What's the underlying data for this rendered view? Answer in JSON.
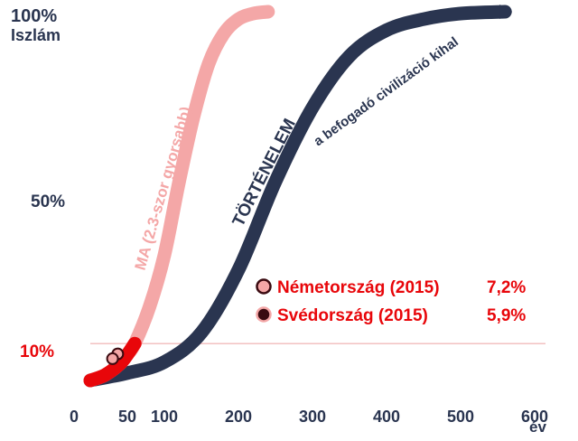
{
  "chart_data": {
    "type": "line",
    "x_unit": "év",
    "x_ticks": [
      "0",
      "50",
      "100",
      "200",
      "300",
      "400",
      "500",
      "600"
    ],
    "x_tick_values": [
      0,
      50,
      100,
      200,
      300,
      400,
      500,
      600
    ],
    "y_ticks": [
      {
        "label": "100%",
        "value": 100
      },
      {
        "label": "50%",
        "value": 50
      },
      {
        "label": "10%",
        "value": 10
      }
    ],
    "y_top_label": "Iszlám",
    "xlim": [
      0,
      600
    ],
    "ylim": [
      0,
      100
    ],
    "reference_line_y": 10,
    "series": [
      {
        "name": "MA (2.3-szor gyorsabb)",
        "color": "#f4a7a7",
        "early_color": "#e8060a",
        "x": [
          0,
          20,
          40,
          50,
          60,
          80,
          100,
          120,
          140,
          160,
          180,
          200,
          220,
          240
        ],
        "y": [
          0,
          1.5,
          4.5,
          7,
          10,
          20,
          34,
          54,
          72,
          86,
          94,
          98,
          99.5,
          100
        ]
      },
      {
        "name": "TÖRTÉNELEM",
        "annotation": "a befogadó civilizáció kihal",
        "color": "#2a3550",
        "x": [
          0,
          50,
          100,
          150,
          200,
          250,
          300,
          350,
          400,
          450,
          500,
          560
        ],
        "y": [
          0,
          2,
          5,
          13,
          30,
          54,
          74,
          88,
          95,
          98,
          99.5,
          100
        ]
      }
    ],
    "legend": [
      {
        "label": "Németország (2015)",
        "value": "7,2%",
        "marker_color": "#f4a7a7",
        "x": 37,
        "y": 7.2
      },
      {
        "label": "Svédország (2015)",
        "value": "5,9%",
        "marker_color": "#3a0a10",
        "x": 30,
        "y": 5.9
      }
    ],
    "colors": {
      "red": "#e8060a",
      "pink": "#f4a7a7",
      "navy": "#2a3550",
      "grid": "#f3c2c2"
    }
  }
}
